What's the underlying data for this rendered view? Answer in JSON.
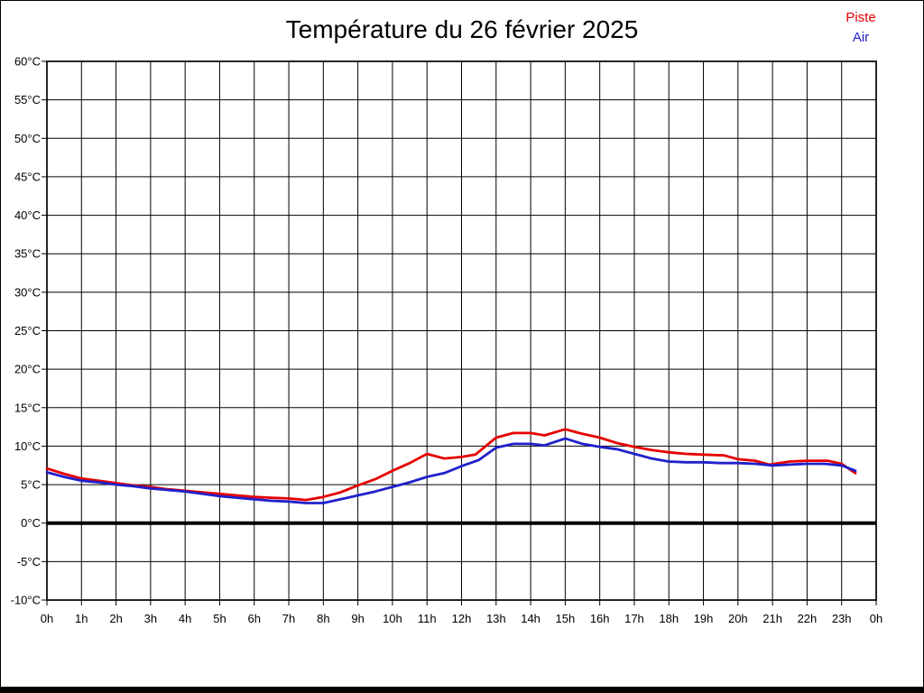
{
  "header": {
    "title": "Température du 26 février 2025"
  },
  "legend": {
    "position": "top-right",
    "items": [
      {
        "label": "Piste",
        "color": "#e60000"
      },
      {
        "label": "Air",
        "color": "#2020cc"
      }
    ]
  },
  "chart_data": {
    "type": "line",
    "title": "Température du 26 février 2025",
    "xlabel": "",
    "ylabel": "",
    "xlim": [
      0,
      24
    ],
    "ylim": [
      -10,
      60
    ],
    "y_step": 5,
    "grid": true,
    "zero_line": true,
    "x_unit": "h",
    "y_unit": "°C",
    "x_tick_labels": [
      "0h",
      "1h",
      "2h",
      "3h",
      "4h",
      "5h",
      "6h",
      "7h",
      "8h",
      "9h",
      "10h",
      "11h",
      "12h",
      "13h",
      "14h",
      "15h",
      "16h",
      "17h",
      "18h",
      "19h",
      "20h",
      "21h",
      "22h",
      "23h",
      "0h"
    ],
    "y_tick_labels": [
      "60°C",
      "55°C",
      "50°C",
      "45°C",
      "40°C",
      "35°C",
      "30°C",
      "25°C",
      "20°C",
      "15°C",
      "10°C",
      "5°C",
      "0°C",
      "-5°C",
      "-10°C"
    ],
    "legend_position": "top-right",
    "series": [
      {
        "name": "Piste",
        "color": "#e60000",
        "points": [
          [
            0,
            7.1
          ],
          [
            0.5,
            6.4
          ],
          [
            1,
            5.8
          ],
          [
            1.5,
            5.5
          ],
          [
            2,
            5.2
          ],
          [
            2.5,
            4.9
          ],
          [
            3,
            4.7
          ],
          [
            3.5,
            4.4
          ],
          [
            4,
            4.2
          ],
          [
            4.5,
            4.0
          ],
          [
            5,
            3.8
          ],
          [
            5.5,
            3.6
          ],
          [
            6,
            3.4
          ],
          [
            6.5,
            3.3
          ],
          [
            7,
            3.2
          ],
          [
            7.5,
            3.0
          ],
          [
            8,
            3.4
          ],
          [
            8.5,
            4.0
          ],
          [
            9,
            4.9
          ],
          [
            9.5,
            5.7
          ],
          [
            10,
            6.8
          ],
          [
            10.5,
            7.8
          ],
          [
            11,
            9.0
          ],
          [
            11.5,
            8.4
          ],
          [
            12,
            8.6
          ],
          [
            12.4,
            8.9
          ],
          [
            13,
            11.1
          ],
          [
            13.5,
            11.7
          ],
          [
            14,
            11.7
          ],
          [
            14.4,
            11.4
          ],
          [
            15,
            12.2
          ],
          [
            15.5,
            11.6
          ],
          [
            16,
            11.1
          ],
          [
            16.5,
            10.4
          ],
          [
            17,
            9.9
          ],
          [
            17.5,
            9.5
          ],
          [
            18,
            9.2
          ],
          [
            18.5,
            9.0
          ],
          [
            19,
            8.9
          ],
          [
            19.6,
            8.8
          ],
          [
            20,
            8.3
          ],
          [
            20.5,
            8.1
          ],
          [
            20.9,
            7.6
          ],
          [
            21.5,
            8.0
          ],
          [
            22,
            8.1
          ],
          [
            22.6,
            8.1
          ],
          [
            23,
            7.7
          ],
          [
            23.4,
            6.5
          ]
        ]
      },
      {
        "name": "Air",
        "color": "#2020cc",
        "points": [
          [
            0,
            6.6
          ],
          [
            0.5,
            6.0
          ],
          [
            1,
            5.5
          ],
          [
            1.5,
            5.3
          ],
          [
            2,
            5.0
          ],
          [
            2.5,
            4.8
          ],
          [
            3,
            4.5
          ],
          [
            3.5,
            4.3
          ],
          [
            4,
            4.1
          ],
          [
            4.5,
            3.8
          ],
          [
            5,
            3.5
          ],
          [
            5.5,
            3.3
          ],
          [
            6,
            3.1
          ],
          [
            6.5,
            2.9
          ],
          [
            7,
            2.8
          ],
          [
            7.5,
            2.6
          ],
          [
            8,
            2.6
          ],
          [
            8.5,
            3.1
          ],
          [
            9,
            3.6
          ],
          [
            9.5,
            4.1
          ],
          [
            10,
            4.7
          ],
          [
            10.5,
            5.3
          ],
          [
            11,
            6.0
          ],
          [
            11.5,
            6.5
          ],
          [
            12,
            7.4
          ],
          [
            12.5,
            8.2
          ],
          [
            13,
            9.8
          ],
          [
            13.5,
            10.3
          ],
          [
            14,
            10.3
          ],
          [
            14.4,
            10.1
          ],
          [
            15,
            11.0
          ],
          [
            15.5,
            10.3
          ],
          [
            16,
            9.9
          ],
          [
            16.5,
            9.6
          ],
          [
            17,
            9.0
          ],
          [
            17.5,
            8.4
          ],
          [
            18,
            8.0
          ],
          [
            18.5,
            7.9
          ],
          [
            19,
            7.9
          ],
          [
            19.5,
            7.8
          ],
          [
            20,
            7.8
          ],
          [
            20.5,
            7.7
          ],
          [
            21,
            7.5
          ],
          [
            21.5,
            7.6
          ],
          [
            22,
            7.7
          ],
          [
            22.5,
            7.7
          ],
          [
            23,
            7.5
          ],
          [
            23.4,
            6.8
          ]
        ]
      }
    ]
  }
}
